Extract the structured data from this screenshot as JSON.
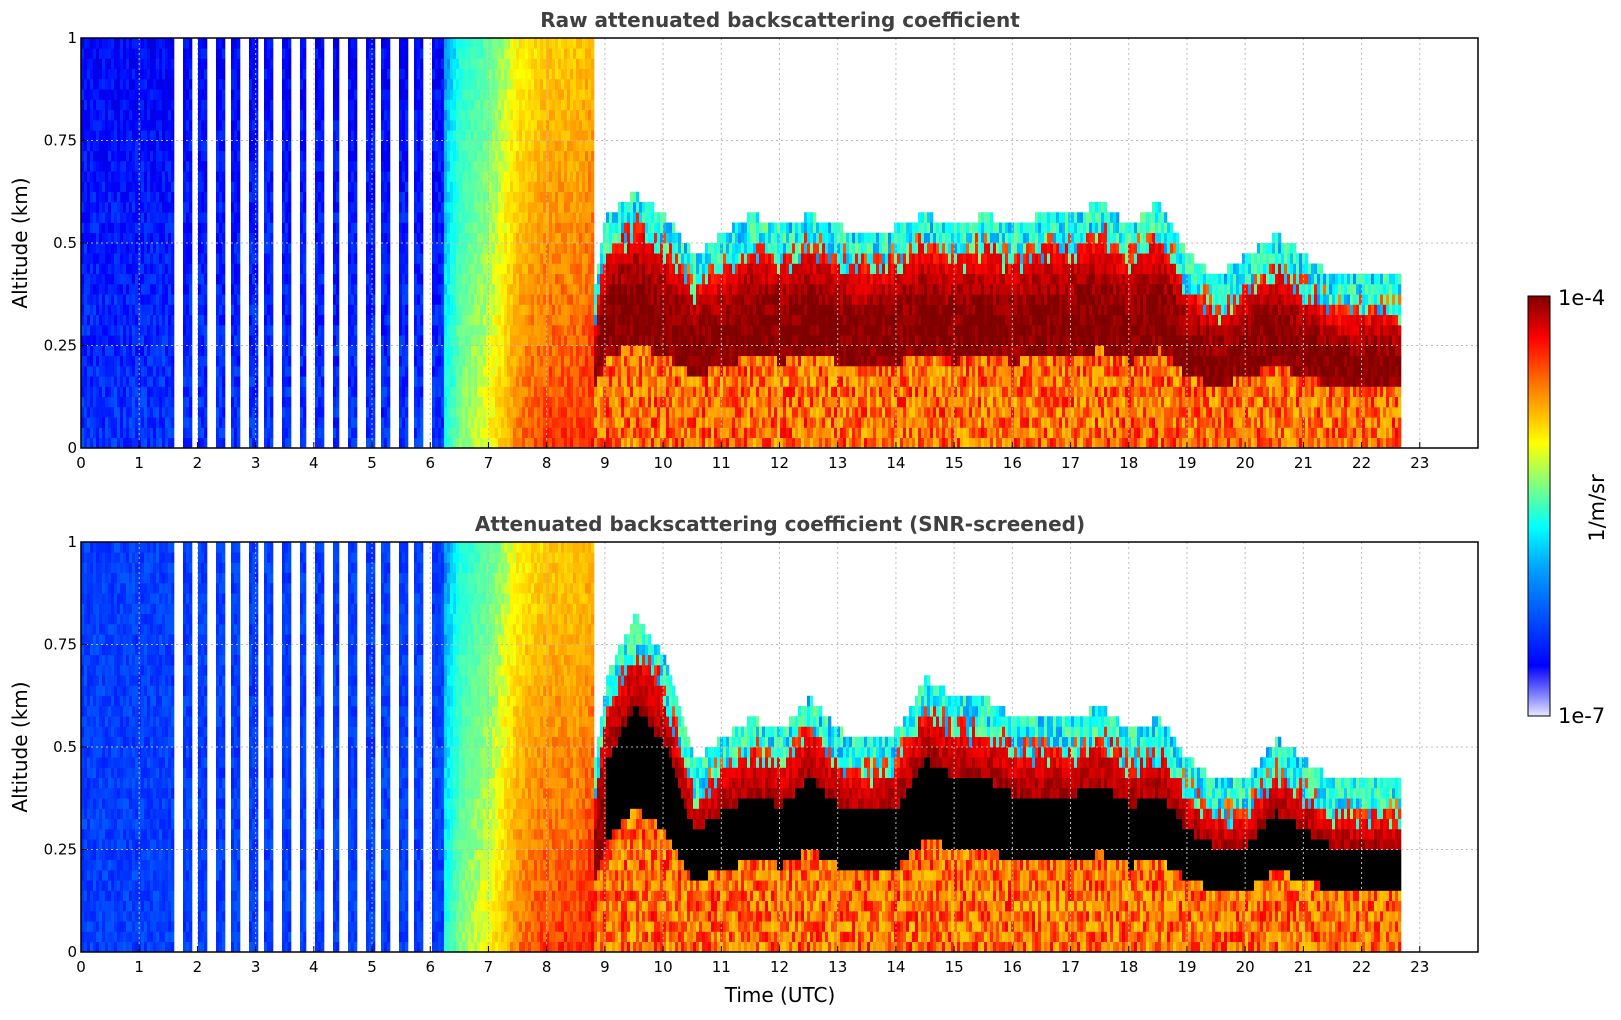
{
  "figure": {
    "colorbar": {
      "min_label": "1e-7",
      "max_label": "1e-4",
      "unit_label": "1/m/sr",
      "scale": "log"
    },
    "xlabel": "Time (UTC)"
  },
  "chart_data": [
    {
      "type": "heatmap",
      "title": "Raw attenuated backscattering coefficient",
      "ylabel": "Altitude (km)",
      "xlabel": "",
      "xlim": [
        0,
        24
      ],
      "ylim": [
        0,
        1
      ],
      "x_ticks": [
        "0",
        "1",
        "2",
        "3",
        "4",
        "5",
        "6",
        "7",
        "8",
        "9",
        "10",
        "11",
        "12",
        "13",
        "14",
        "15",
        "16",
        "17",
        "18",
        "19",
        "20",
        "21",
        "22",
        "23"
      ],
      "y_ticks": [
        "0",
        "0.25",
        "0.5",
        "0.75",
        "1"
      ],
      "grid": true,
      "colormap": "jet",
      "screened": false,
      "approx_profile": {
        "time_utc": [
          0,
          1,
          2,
          3,
          4,
          5,
          6,
          6.5,
          7,
          7.5,
          8,
          8.5,
          9,
          9.5,
          10,
          10.5,
          11,
          11.5,
          12,
          12.5,
          13,
          13.5,
          14,
          14.5,
          15,
          15.5,
          16,
          16.5,
          17,
          17.5,
          18,
          18.5,
          19,
          19.5,
          20,
          20.5,
          21,
          21.5,
          22,
          22.6
        ],
        "layer_top_km": [
          0,
          0,
          0,
          0,
          0,
          0,
          0,
          0,
          0,
          0,
          0,
          0,
          0.45,
          0.5,
          0.45,
          0.35,
          0.4,
          0.45,
          0.42,
          0.45,
          0.42,
          0.4,
          0.42,
          0.45,
          0.42,
          0.45,
          0.42,
          0.45,
          0.45,
          0.48,
          0.42,
          0.48,
          0.35,
          0.3,
          0.35,
          0.4,
          0.35,
          0.3,
          0.3,
          0.3
        ],
        "signal_level": [
          0.15,
          0.15,
          0.15,
          0.15,
          0.15,
          0.15,
          0.25,
          0.55,
          0.65,
          0.8,
          0.85,
          0.85,
          0.9,
          0.9,
          0.9,
          0.9,
          0.9,
          0.9,
          0.9,
          0.9,
          0.9,
          0.9,
          0.9,
          0.9,
          0.9,
          0.9,
          0.9,
          0.9,
          0.95,
          0.95,
          0.95,
          0.95,
          0.95,
          0.95,
          0.95,
          0.95,
          0.95,
          0.95,
          0.95,
          0.95
        ]
      }
    },
    {
      "type": "heatmap",
      "title": "Attenuated backscattering coefficient (SNR-screened)",
      "ylabel": "Altitude (km)",
      "xlabel": "Time (UTC)",
      "xlim": [
        0,
        24
      ],
      "ylim": [
        0,
        1
      ],
      "x_ticks": [
        "0",
        "1",
        "2",
        "3",
        "4",
        "5",
        "6",
        "7",
        "8",
        "9",
        "10",
        "11",
        "12",
        "13",
        "14",
        "15",
        "16",
        "17",
        "18",
        "19",
        "20",
        "21",
        "22",
        "23"
      ],
      "y_ticks": [
        "0",
        "0.25",
        "0.5",
        "0.75",
        "1"
      ],
      "grid": true,
      "colormap": "jet",
      "screened": true,
      "approx_profile": {
        "time_utc": [
          0,
          1,
          2,
          3,
          4,
          5,
          6,
          6.5,
          7,
          7.5,
          8,
          8.5,
          9,
          9.5,
          10,
          10.5,
          11,
          11.5,
          12,
          12.5,
          13,
          13.5,
          14,
          14.5,
          15,
          15.5,
          16,
          16.5,
          17,
          17.5,
          18,
          18.5,
          19,
          19.5,
          20,
          20.5,
          21,
          21.5,
          22,
          22.6
        ],
        "layer_top_km": [
          0,
          0,
          0,
          0,
          0,
          0,
          0,
          0,
          0,
          0,
          0,
          0,
          0.55,
          0.7,
          0.6,
          0.35,
          0.4,
          0.45,
          0.42,
          0.5,
          0.42,
          0.4,
          0.42,
          0.55,
          0.5,
          0.5,
          0.45,
          0.45,
          0.45,
          0.48,
          0.42,
          0.45,
          0.35,
          0.3,
          0.3,
          0.4,
          0.35,
          0.3,
          0.3,
          0.3
        ],
        "signal_level": [
          0.1,
          0.12,
          0.15,
          0.15,
          0.15,
          0.15,
          0.25,
          0.55,
          0.65,
          0.8,
          0.85,
          0.85,
          0.9,
          0.9,
          0.9,
          0.9,
          0.9,
          0.9,
          0.9,
          0.9,
          0.9,
          0.9,
          0.9,
          0.9,
          0.9,
          0.9,
          0.9,
          0.9,
          0.95,
          0.95,
          0.95,
          0.95,
          0.95,
          0.95,
          0.95,
          0.95,
          0.95,
          0.95,
          0.95,
          0.95
        ]
      }
    }
  ]
}
